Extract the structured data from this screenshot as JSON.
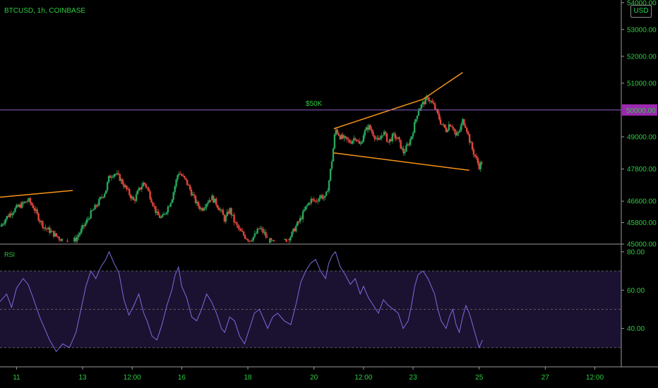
{
  "symbol_label": "BTCUSD, 1h, COINBASE",
  "currency_button": "USD",
  "colors": {
    "background": "#000000",
    "bull": "#26a65b",
    "bear": "#e0453a",
    "trendline": "#f7931a",
    "level_line": "#8e5ec9",
    "level_badge": "#9c27b0",
    "rsi_line": "#7e6be0",
    "rsi_band": "#1a1230",
    "axis_text": "#2ecc40",
    "annotation": "#f5d33a"
  },
  "chart_data": [
    {
      "type": "candlestick",
      "ylim": [
        45000,
        54100
      ],
      "y_ticks": [
        {
          "value": 54000,
          "label": "54000.00"
        },
        {
          "value": 53000,
          "label": "53000.00"
        },
        {
          "value": 52000,
          "label": "52000.00"
        },
        {
          "value": 51000,
          "label": "51000.00"
        },
        {
          "value": 49000,
          "label": "49000.00"
        },
        {
          "value": 47800,
          "label": "47800.00"
        },
        {
          "value": 46600,
          "label": "46600.00"
        },
        {
          "value": 45800,
          "label": "45800.00"
        },
        {
          "value": 45000,
          "label": "45000.00"
        }
      ],
      "x_ticks": [
        {
          "day": 11,
          "label": "11"
        },
        {
          "day": 13,
          "label": "13"
        },
        {
          "day": 14.5,
          "label": "12:00"
        },
        {
          "day": 16,
          "label": "16"
        },
        {
          "day": 18,
          "label": "18"
        },
        {
          "day": 20,
          "label": "20"
        },
        {
          "day": 21.5,
          "label": "12:00"
        },
        {
          "day": 23,
          "label": "23"
        },
        {
          "day": 25,
          "label": "25"
        },
        {
          "day": 27,
          "label": "27"
        },
        {
          "day": 28.5,
          "label": "12:00"
        }
      ],
      "level": {
        "value": 50000,
        "label": "50000.00",
        "annotation": "$50K",
        "annotation_day": 20.0
      },
      "trendlines": [
        {
          "points": [
            [
              10.5,
              46750
            ],
            [
              12.7,
              47000
            ]
          ]
        },
        {
          "points": [
            [
              20.6,
              49300
            ],
            [
              23.3,
              50400
            ],
            [
              24.5,
              51400
            ]
          ]
        },
        {
          "points": [
            [
              20.6,
              48400
            ],
            [
              24.7,
              47750
            ]
          ]
        }
      ],
      "close_path": [
        [
          10.5,
          45650
        ],
        [
          10.7,
          46000
        ],
        [
          10.85,
          46200
        ],
        [
          11.0,
          46350
        ],
        [
          11.2,
          46500
        ],
        [
          11.35,
          46650
        ],
        [
          11.5,
          46400
        ],
        [
          11.7,
          45900
        ],
        [
          11.85,
          45600
        ],
        [
          12.0,
          45500
        ],
        [
          12.2,
          45300
        ],
        [
          12.4,
          45150
        ],
        [
          12.6,
          45000
        ],
        [
          12.8,
          45200
        ],
        [
          12.95,
          45500
        ],
        [
          13.1,
          45800
        ],
        [
          13.25,
          46150
        ],
        [
          13.4,
          46400
        ],
        [
          13.55,
          46700
        ],
        [
          13.7,
          47000
        ],
        [
          13.8,
          47500
        ],
        [
          13.95,
          47650
        ],
        [
          14.1,
          47500
        ],
        [
          14.25,
          47200
        ],
        [
          14.4,
          46900
        ],
        [
          14.55,
          46600
        ],
        [
          14.7,
          47000
        ],
        [
          14.85,
          47300
        ],
        [
          14.95,
          47100
        ],
        [
          15.1,
          46600
        ],
        [
          15.25,
          46100
        ],
        [
          15.4,
          45950
        ],
        [
          15.55,
          46300
        ],
        [
          15.7,
          46700
        ],
        [
          15.8,
          47200
        ],
        [
          15.9,
          47700
        ],
        [
          16.0,
          47550
        ],
        [
          16.15,
          47300
        ],
        [
          16.3,
          46900
        ],
        [
          16.45,
          46500
        ],
        [
          16.6,
          46300
        ],
        [
          16.75,
          46550
        ],
        [
          16.9,
          46750
        ],
        [
          17.05,
          46500
        ],
        [
          17.2,
          46200
        ],
        [
          17.3,
          45900
        ],
        [
          17.45,
          46300
        ],
        [
          17.6,
          45800
        ],
        [
          17.75,
          45500
        ],
        [
          17.9,
          45300
        ],
        [
          18.05,
          45150
        ],
        [
          18.2,
          45300
        ],
        [
          18.35,
          45600
        ],
        [
          18.5,
          45400
        ],
        [
          18.6,
          45150
        ],
        [
          18.75,
          45050
        ],
        [
          18.9,
          45000
        ],
        [
          19.1,
          45100
        ],
        [
          19.3,
          45300
        ],
        [
          19.45,
          45650
        ],
        [
          19.6,
          45950
        ],
        [
          19.75,
          46350
        ],
        [
          19.9,
          46650
        ],
        [
          20.05,
          46600
        ],
        [
          20.2,
          46800
        ],
        [
          20.35,
          46700
        ],
        [
          20.45,
          47300
        ],
        [
          20.55,
          48200
        ],
        [
          20.65,
          49300
        ],
        [
          20.8,
          49000
        ],
        [
          20.95,
          48900
        ],
        [
          21.1,
          48800
        ],
        [
          21.25,
          49000
        ],
        [
          21.4,
          48650
        ],
        [
          21.5,
          49100
        ],
        [
          21.65,
          49400
        ],
        [
          21.8,
          49100
        ],
        [
          21.95,
          48800
        ],
        [
          22.1,
          49200
        ],
        [
          22.25,
          48800
        ],
        [
          22.4,
          49050
        ],
        [
          22.55,
          48900
        ],
        [
          22.7,
          48400
        ],
        [
          22.85,
          48700
        ],
        [
          22.95,
          49000
        ],
        [
          23.05,
          49500
        ],
        [
          23.15,
          50000
        ],
        [
          23.3,
          50250
        ],
        [
          23.45,
          50450
        ],
        [
          23.55,
          50300
        ],
        [
          23.65,
          50100
        ],
        [
          23.75,
          49800
        ],
        [
          23.85,
          49500
        ],
        [
          24.0,
          49250
        ],
        [
          24.1,
          49500
        ],
        [
          24.2,
          49400
        ],
        [
          24.3,
          49000
        ],
        [
          24.4,
          49200
        ],
        [
          24.5,
          49600
        ],
        [
          24.6,
          49400
        ],
        [
          24.7,
          48900
        ],
        [
          24.8,
          48500
        ],
        [
          24.9,
          48200
        ],
        [
          25.0,
          47900
        ],
        [
          25.1,
          48100
        ]
      ]
    },
    {
      "type": "line",
      "name": "RSI",
      "ylim": [
        20,
        84
      ],
      "y_ticks": [
        {
          "value": 80,
          "label": "80.00"
        },
        {
          "value": 60,
          "label": "60.00"
        },
        {
          "value": 40,
          "label": "40.00"
        }
      ],
      "band": [
        30,
        70
      ],
      "midline": 50,
      "points": [
        [
          10.5,
          54
        ],
        [
          10.7,
          58
        ],
        [
          10.85,
          51
        ],
        [
          11.0,
          61
        ],
        [
          11.2,
          66
        ],
        [
          11.35,
          63
        ],
        [
          11.5,
          56
        ],
        [
          11.7,
          46
        ],
        [
          11.85,
          40
        ],
        [
          12.0,
          34
        ],
        [
          12.2,
          28
        ],
        [
          12.4,
          32
        ],
        [
          12.6,
          30
        ],
        [
          12.8,
          38
        ],
        [
          12.95,
          50
        ],
        [
          13.1,
          62
        ],
        [
          13.25,
          70
        ],
        [
          13.4,
          66
        ],
        [
          13.55,
          72
        ],
        [
          13.7,
          76
        ],
        [
          13.8,
          80
        ],
        [
          13.95,
          74
        ],
        [
          14.1,
          69
        ],
        [
          14.25,
          55
        ],
        [
          14.4,
          47
        ],
        [
          14.55,
          52
        ],
        [
          14.7,
          58
        ],
        [
          14.85,
          48
        ],
        [
          14.95,
          44
        ],
        [
          15.1,
          36
        ],
        [
          15.25,
          34
        ],
        [
          15.4,
          42
        ],
        [
          15.55,
          52
        ],
        [
          15.7,
          60
        ],
        [
          15.8,
          68
        ],
        [
          15.9,
          72
        ],
        [
          16.0,
          62
        ],
        [
          16.15,
          56
        ],
        [
          16.3,
          46
        ],
        [
          16.45,
          44
        ],
        [
          16.6,
          50
        ],
        [
          16.75,
          58
        ],
        [
          16.9,
          54
        ],
        [
          17.05,
          48
        ],
        [
          17.2,
          40
        ],
        [
          17.3,
          38
        ],
        [
          17.45,
          46
        ],
        [
          17.6,
          44
        ],
        [
          17.75,
          36
        ],
        [
          17.9,
          32
        ],
        [
          18.05,
          40
        ],
        [
          18.2,
          48
        ],
        [
          18.35,
          50
        ],
        [
          18.5,
          44
        ],
        [
          18.6,
          40
        ],
        [
          18.75,
          46
        ],
        [
          18.9,
          48
        ],
        [
          19.1,
          44
        ],
        [
          19.3,
          42
        ],
        [
          19.45,
          52
        ],
        [
          19.6,
          64
        ],
        [
          19.75,
          70
        ],
        [
          19.9,
          74
        ],
        [
          20.05,
          76
        ],
        [
          20.2,
          70
        ],
        [
          20.35,
          66
        ],
        [
          20.45,
          74
        ],
        [
          20.55,
          78
        ],
        [
          20.65,
          80
        ],
        [
          20.8,
          72
        ],
        [
          20.95,
          68
        ],
        [
          21.1,
          63
        ],
        [
          21.25,
          66
        ],
        [
          21.4,
          58
        ],
        [
          21.5,
          62
        ],
        [
          21.65,
          56
        ],
        [
          21.8,
          52
        ],
        [
          21.95,
          48
        ],
        [
          22.1,
          55
        ],
        [
          22.25,
          52
        ],
        [
          22.4,
          50
        ],
        [
          22.55,
          48
        ],
        [
          22.7,
          40
        ],
        [
          22.85,
          44
        ],
        [
          22.95,
          52
        ],
        [
          23.05,
          62
        ],
        [
          23.15,
          68
        ],
        [
          23.3,
          70
        ],
        [
          23.45,
          66
        ],
        [
          23.55,
          62
        ],
        [
          23.65,
          58
        ],
        [
          23.75,
          50
        ],
        [
          23.85,
          44
        ],
        [
          24.0,
          40
        ],
        [
          24.1,
          46
        ],
        [
          24.2,
          50
        ],
        [
          24.3,
          42
        ],
        [
          24.4,
          38
        ],
        [
          24.5,
          46
        ],
        [
          24.6,
          52
        ],
        [
          24.7,
          48
        ],
        [
          24.8,
          42
        ],
        [
          24.9,
          36
        ],
        [
          25.0,
          30
        ],
        [
          25.1,
          34
        ]
      ]
    }
  ]
}
